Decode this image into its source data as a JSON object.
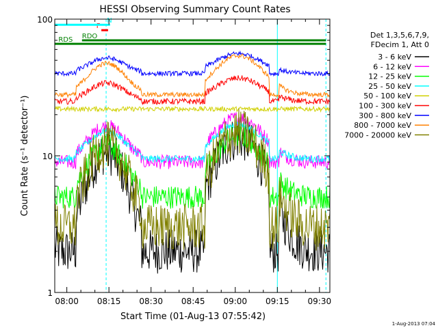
{
  "chart_data": {
    "type": "line",
    "title": "HESSI Observing Summary Count Rates",
    "xlabel": "Start Time (01-Aug-13 07:55:42)",
    "ylabel": "Count Rate (s⁻¹ detector⁻¹)",
    "x_unit": "minutes since 07:55:42",
    "xlim": [
      0,
      98
    ],
    "ylim": [
      1,
      100
    ],
    "yscale": "log",
    "x_ticks": [
      {
        "t": 4.3,
        "label": "08:00"
      },
      {
        "t": 19.3,
        "label": "08:15"
      },
      {
        "t": 34.3,
        "label": "08:30"
      },
      {
        "t": 49.3,
        "label": "08:45"
      },
      {
        "t": 64.3,
        "label": "09:00"
      },
      {
        "t": 79.3,
        "label": "09:15"
      },
      {
        "t": 94.3,
        "label": "09:30"
      }
    ],
    "y_ticks": [
      {
        "v": 1,
        "label": "1"
      },
      {
        "v": 10,
        "label": "10"
      },
      {
        "v": 100,
        "label": "100"
      }
    ],
    "legend_position": "right",
    "legend_header": [
      "Det 1,3,5,6,7,9,",
      "FDecim 1, Att 0"
    ],
    "series": [
      {
        "name": "3 - 6 keV",
        "color": "#000000",
        "night": 2.0,
        "peak": 13.5,
        "noise": 0.38
      },
      {
        "name": "6 - 12 keV",
        "color": "#ff00ff",
        "night": 9.0,
        "peak": 19.0,
        "noise": 0.12
      },
      {
        "name": "12 - 25 keV",
        "color": "#00ff00",
        "night": 5.0,
        "peak": 14.0,
        "noise": 0.2
      },
      {
        "name": "25 - 50 keV",
        "color": "#00ffff",
        "night": 9.5,
        "peak": 17.0,
        "noise": 0.06
      },
      {
        "name": "50 - 100 keV",
        "color": "#d0d000",
        "night": 22.0,
        "peak": 22.0,
        "noise": 0.04
      },
      {
        "name": "100 - 300 keV",
        "color": "#ff0000",
        "night": 25.0,
        "peak": 37.0,
        "noise": 0.05
      },
      {
        "name": "300 - 800 keV",
        "color": "#0000ff",
        "night": 40.0,
        "peak": 56.0,
        "noise": 0.04
      },
      {
        "name": "800 - 7000 keV",
        "color": "#ff8000",
        "night": 28.0,
        "peak": 54.0,
        "noise": 0.04
      },
      {
        "name": "7000 - 20000 keV",
        "color": "#808000",
        "night": 3.0,
        "peak": 15.0,
        "noise": 0.4
      }
    ],
    "eclipse_intervals": [
      [
        1.1,
        7.6
      ],
      [
        31.0,
        53.5
      ],
      [
        76.5,
        80.0
      ]
    ],
    "flag_bars": [
      {
        "label": "RDS",
        "color": "#008000",
        "t0": 0,
        "t1": 96.6,
        "y": 66,
        "label_t": 1.3
      },
      {
        "label": "RDO",
        "color": "#008000",
        "t0": 9.7,
        "t1": 96.6,
        "y": 70,
        "label_t": 9.7
      },
      {
        "label": "F",
        "color": "#ff0000",
        "t0": 16.6,
        "t1": 19.0,
        "y": 83,
        "label_t": 14.8
      },
      {
        "label": "N",
        "color": "#00ffff",
        "t0": 0,
        "t1": 19.7,
        "y": 91,
        "label_t": 18.6
      }
    ],
    "vertical_markers": [
      {
        "t": 18.3,
        "color": "#00ffff",
        "style": "dashed"
      },
      {
        "t": 79.3,
        "color": "#00ffff",
        "style": "solid"
      },
      {
        "t": 96.6,
        "color": "#00ffff",
        "style": "dashed"
      }
    ],
    "footer_date": "1-Aug-2013 07:04"
  }
}
